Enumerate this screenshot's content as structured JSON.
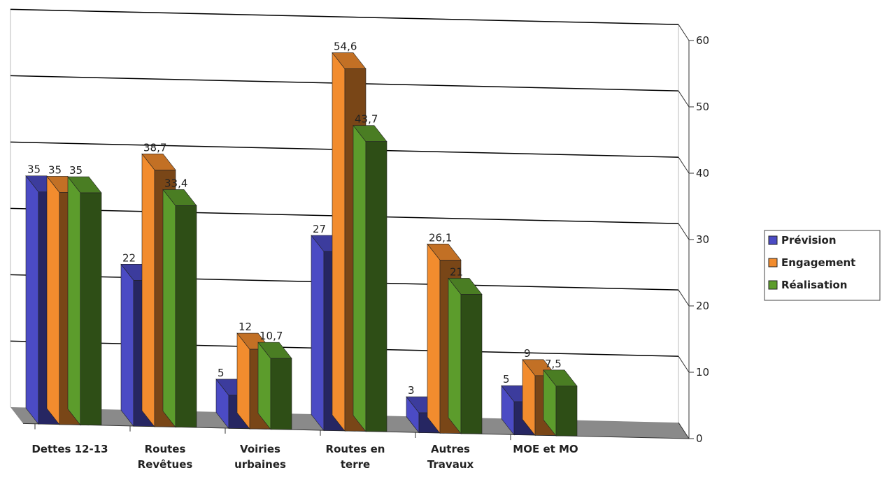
{
  "chart_data": {
    "type": "bar3d",
    "categories": [
      "Dettes 12-13",
      "Routes Revêtues",
      "Voiries urbaines",
      "Routes en terre",
      "Autres Travaux",
      "MOE et MO"
    ],
    "series": [
      {
        "name": "Prévision",
        "color": "#4b4bc4",
        "values": [
          35,
          22,
          5,
          27,
          3,
          5
        ],
        "value_labels": [
          "35",
          "22",
          "5",
          "27",
          "3",
          "5"
        ]
      },
      {
        "name": "Engagement",
        "color": "#f28c2e",
        "values": [
          35,
          38.7,
          12,
          54.6,
          26.1,
          9
        ],
        "value_labels": [
          "35",
          "38,7",
          "12",
          "54,6",
          "26,1",
          "9"
        ]
      },
      {
        "name": "Réalisation",
        "color": "#5c9c2c",
        "values": [
          35,
          33.4,
          10.7,
          43.7,
          21,
          7.5
        ],
        "value_labels": [
          "35",
          "33,4",
          "10,7",
          "43,7",
          "21",
          "7,5"
        ]
      }
    ],
    "ylim": [
      0,
      60
    ],
    "yticks": [
      0,
      10,
      20,
      30,
      40,
      50,
      60
    ],
    "grid": true,
    "legend": "right"
  }
}
